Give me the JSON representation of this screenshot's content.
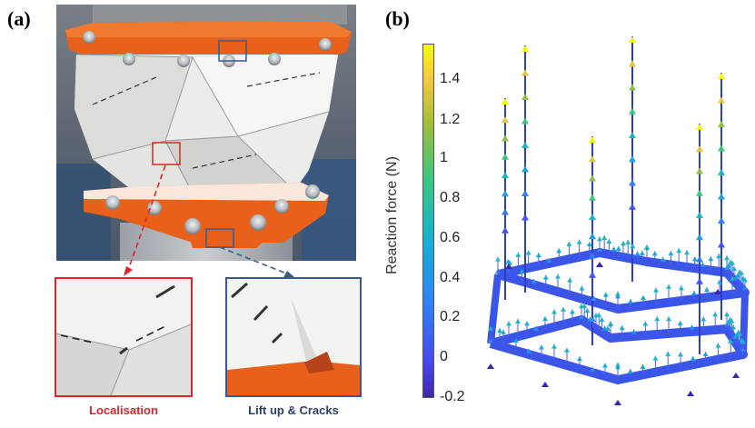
{
  "panel_a": {
    "label": "(a)",
    "caption_left": "Localisation",
    "caption_right": "Lift up & Cracks",
    "colors": {
      "left_box": "#d9262a",
      "right_box": "#3a5a8c",
      "orange": "#e8601a"
    }
  },
  "panel_b": {
    "label": "(b)",
    "colorbar": {
      "title": "Reaction force (N)",
      "ticks": [
        "1.4",
        "1.2",
        "1",
        "0.8",
        "0.6",
        "0.4",
        "0.2",
        "0",
        "-0.2"
      ],
      "range": [
        -0.25,
        1.55
      ],
      "colormap": "parula"
    }
  }
}
